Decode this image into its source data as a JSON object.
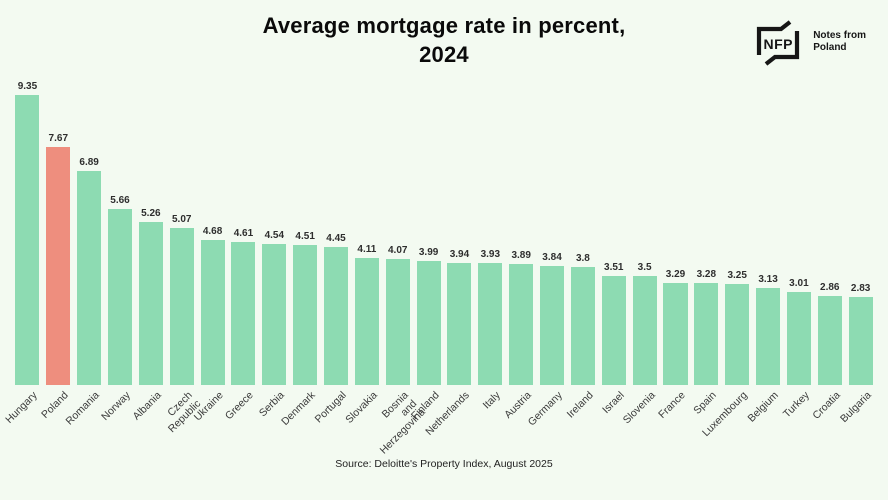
{
  "title": "Average mortgage rate in percent,\n2024",
  "logo": {
    "mark": "NFP",
    "text": "Notes from\nPoland"
  },
  "source": "Source: Deloitte's Property Index, August 2025",
  "colors": {
    "background": "#f3faf1",
    "bar": "#8ddbb2",
    "highlight": "#ee8e7e",
    "title_text": "#0a0a0a",
    "value_text": "#2e2e2e",
    "axis_label_text": "#3b3b3b"
  },
  "chart_data": {
    "type": "bar",
    "title": "Average mortgage rate in percent, 2024",
    "categories": [
      "Hungary",
      "Poland",
      "Romania",
      "Norway",
      "Albania",
      "Czech\nRepublic",
      "Ukraine",
      "Greece",
      "Serbia",
      "Denmark",
      "Portugal",
      "Slovakia",
      "Bosnia\nand\nHerzegovina",
      "Finland",
      "Netherlands",
      "Italy",
      "Austria",
      "Germany",
      "Ireland",
      "Israel",
      "Slovenia",
      "France",
      "Spain",
      "Luxembourg",
      "Belgium",
      "Turkey",
      "Croatia",
      "Bulgaria"
    ],
    "values": [
      9.35,
      7.67,
      6.89,
      5.66,
      5.26,
      5.07,
      4.68,
      4.61,
      4.54,
      4.51,
      4.45,
      4.11,
      4.07,
      3.99,
      3.94,
      3.93,
      3.89,
      3.84,
      3.8,
      3.51,
      3.5,
      3.29,
      3.28,
      3.25,
      3.13,
      3.01,
      2.86,
      2.83
    ],
    "highlight_index": 1,
    "highlight_category": "Poland",
    "xlabel": "",
    "ylabel": "",
    "ylim": [
      0,
      10
    ],
    "grid": false,
    "legend": false,
    "value_labels": true,
    "source": "Source: Deloitte's Property Index, August 2025"
  }
}
